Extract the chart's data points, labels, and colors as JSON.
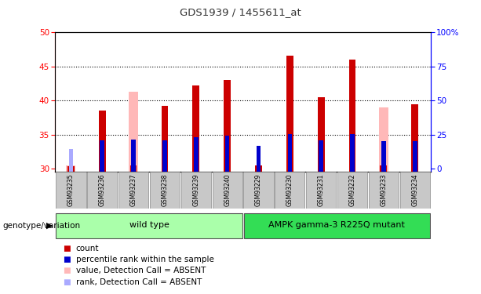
{
  "title": "GDS1939 / 1455611_at",
  "samples": [
    "GSM93235",
    "GSM93236",
    "GSM93237",
    "GSM93238",
    "GSM93239",
    "GSM93240",
    "GSM93229",
    "GSM93230",
    "GSM93231",
    "GSM93232",
    "GSM93233",
    "GSM93234"
  ],
  "ylim": [
    29.5,
    50
  ],
  "yticks": [
    30,
    35,
    40,
    45,
    50
  ],
  "right_yticks": [
    0,
    25,
    50,
    75,
    100
  ],
  "red_bars": [
    30.3,
    38.5,
    30.5,
    39.2,
    42.2,
    43.0,
    30.5,
    46.6,
    40.5,
    46.0,
    30.5,
    39.4
  ],
  "pink_bars": [
    30.5,
    null,
    41.3,
    null,
    null,
    null,
    null,
    null,
    null,
    null,
    39.0,
    null
  ],
  "blue_bars": [
    null,
    34.2,
    34.3,
    34.2,
    34.6,
    34.8,
    33.3,
    35.1,
    34.2,
    35.1,
    34.0,
    34.0
  ],
  "light_blue_bars": [
    32.9,
    null,
    null,
    null,
    null,
    null,
    null,
    null,
    null,
    null,
    null,
    null
  ],
  "group1_label": "wild type",
  "group2_label": "AMPK gamma-3 R225Q mutant",
  "legend_items": [
    "count",
    "percentile rank within the sample",
    "value, Detection Call = ABSENT",
    "rank, Detection Call = ABSENT"
  ],
  "legend_colors": [
    "#cc0000",
    "#0000cc",
    "#ffb8b8",
    "#aaaaff"
  ],
  "group1_color": "#aaffaa",
  "group2_color": "#33dd55",
  "tick_bg": "#c8c8c8",
  "genotype_label": "genotype/variation"
}
